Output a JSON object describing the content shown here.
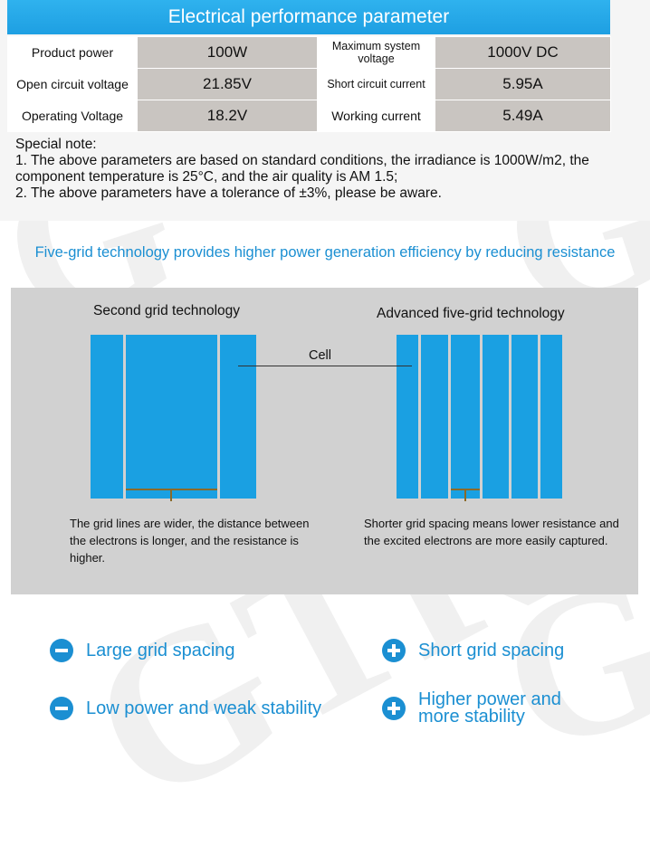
{
  "spec": {
    "header": "Electrical performance parameter",
    "rows": [
      [
        "Product power",
        "100W",
        "Maximum system voltage",
        "1000V  DC"
      ],
      [
        "Open circuit voltage",
        "21.85V",
        "Short circuit current",
        "5.95A"
      ],
      [
        "Operating Voltage",
        "18.2V",
        "Working current",
        "5.49A"
      ]
    ],
    "note_title": "Special note:",
    "note_1": "1. The above parameters are based on standard conditions, the irradiance is 1000W/m2, the component temperature is 25°C, and the air quality is AM 1.5;",
    "note_2": "2. The above parameters have a tolerance of ±3%, please be aware."
  },
  "compare": {
    "headline": "Five-grid technology provides higher power generation efficiency by reducing resistance",
    "left_title": "Second grid technology",
    "right_title": "Advanced five-grid technology",
    "cell_label": "Cell",
    "left_desc": "The grid lines are wider, the distance between the electrons is longer, and the resistance is higher.",
    "right_desc": "Shorter grid spacing means lower resistance and the excited electrons are more easily captured."
  },
  "features": {
    "left": [
      "Large grid spacing",
      "Low power and weak stability"
    ],
    "right": [
      "Short grid spacing",
      "Higher power and more stability"
    ]
  },
  "colors": {
    "accent": "#1b8fd2",
    "cell_blue": "#1aa0e2",
    "panel_gray": "#d1d1d1",
    "value_cell": "#c9c5c1"
  }
}
